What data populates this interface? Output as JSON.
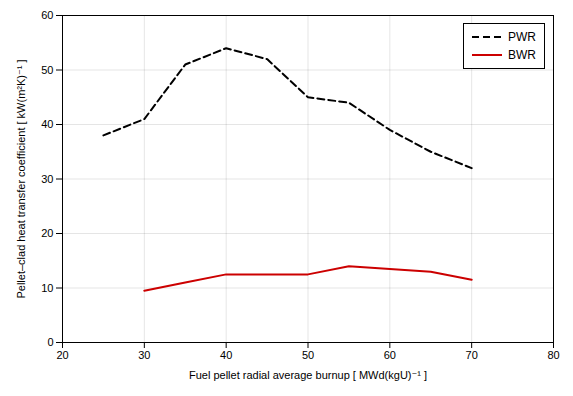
{
  "chart_data": {
    "type": "line",
    "xlabel": "Fuel pellet radial average burnup [ MWd(kgU)⁻¹ ]",
    "ylabel": "Pellet–clad heat transfer coefficient [ kW(m²K)⁻¹ ]",
    "series": [
      {
        "name": "PWR",
        "color": "#000000",
        "line_style": "dashed",
        "x": [
          25,
          30,
          35,
          40,
          45,
          50,
          55,
          60,
          65,
          70
        ],
        "values": [
          38,
          41,
          51,
          54,
          52,
          45,
          44,
          39,
          35,
          32
        ]
      },
      {
        "name": "BWR",
        "color": "#cc0000",
        "line_style": "solid",
        "x": [
          30,
          35,
          40,
          45,
          50,
          55,
          60,
          65,
          70
        ],
        "values": [
          9.5,
          11.0,
          12.5,
          12.5,
          12.5,
          14.0,
          13.5,
          13.0,
          11.5
        ]
      }
    ],
    "xlim": [
      20,
      80
    ],
    "ylim": [
      0,
      60
    ],
    "xticks": [
      20,
      30,
      40,
      50,
      60,
      70,
      80
    ],
    "yticks": [
      0,
      10,
      20,
      30,
      40,
      50,
      60
    ],
    "grid": true,
    "legend": "upper right"
  }
}
